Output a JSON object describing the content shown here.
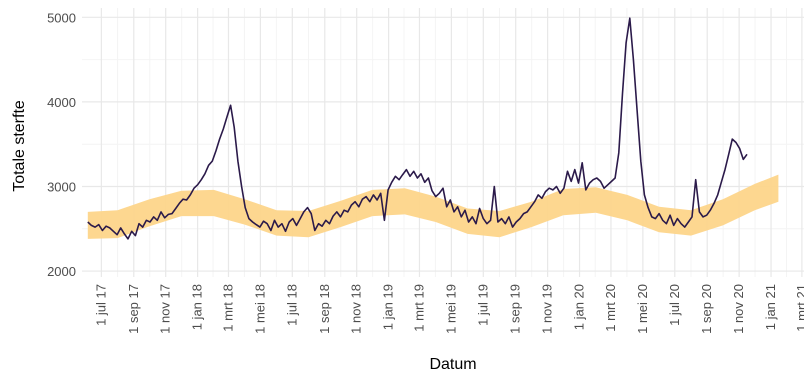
{
  "chart_data": {
    "type": "line",
    "title": "",
    "xlabel": "Datum",
    "ylabel": "Totale sterfte",
    "xlim": [
      "2017-05-25",
      "2021-03-05"
    ],
    "ylim": [
      1930,
      5110
    ],
    "grid": true,
    "legend": "none",
    "colors": {
      "line": "#2b1a4a",
      "band": "#fdd58a",
      "grid_major": "#e8e8e8",
      "grid_minor": "#f4f4f4"
    },
    "x_ticks": [
      {
        "date": "2017-07-01",
        "label": "1 jul 17"
      },
      {
        "date": "2017-09-01",
        "label": "1 sep 17"
      },
      {
        "date": "2017-11-01",
        "label": "1 nov 17"
      },
      {
        "date": "2018-01-01",
        "label": "1 jan 18"
      },
      {
        "date": "2018-03-01",
        "label": "1 mrt 18"
      },
      {
        "date": "2018-05-01",
        "label": "1 mei 18"
      },
      {
        "date": "2018-07-01",
        "label": "1 jul 18"
      },
      {
        "date": "2018-09-01",
        "label": "1 sep 18"
      },
      {
        "date": "2018-11-01",
        "label": "1 nov 18"
      },
      {
        "date": "2019-01-01",
        "label": "1 jan 19"
      },
      {
        "date": "2019-03-01",
        "label": "1 mrt 19"
      },
      {
        "date": "2019-05-01",
        "label": "1 mei 19"
      },
      {
        "date": "2019-07-01",
        "label": "1 jul 19"
      },
      {
        "date": "2019-09-01",
        "label": "1 sep 19"
      },
      {
        "date": "2019-11-01",
        "label": "1 nov 19"
      },
      {
        "date": "2020-01-01",
        "label": "1 jan 20"
      },
      {
        "date": "2020-03-01",
        "label": "1 mrt 20"
      },
      {
        "date": "2020-05-01",
        "label": "1 mei 20"
      },
      {
        "date": "2020-07-01",
        "label": "1 jul 20"
      },
      {
        "date": "2020-09-01",
        "label": "1 sep 20"
      },
      {
        "date": "2020-11-01",
        "label": "1 nov 20"
      },
      {
        "date": "2021-01-01",
        "label": "1 jan 21"
      },
      {
        "date": "2021-03-01",
        "label": "1 mrt 21"
      }
    ],
    "y_ticks": [
      {
        "value": 2000,
        "label": "2000"
      },
      {
        "value": 3000,
        "label": "3000"
      },
      {
        "value": 4000,
        "label": "4000"
      },
      {
        "value": 5000,
        "label": "5000"
      }
    ],
    "series": [
      {
        "kind": "line",
        "points": [
          [
            "2017-06-05",
            2580
          ],
          [
            "2017-06-12",
            2540
          ],
          [
            "2017-06-19",
            2520
          ],
          [
            "2017-06-26",
            2550
          ],
          [
            "2017-07-03",
            2480
          ],
          [
            "2017-07-10",
            2530
          ],
          [
            "2017-07-17",
            2510
          ],
          [
            "2017-07-24",
            2470
          ],
          [
            "2017-07-31",
            2430
          ],
          [
            "2017-08-07",
            2510
          ],
          [
            "2017-08-14",
            2440
          ],
          [
            "2017-08-21",
            2380
          ],
          [
            "2017-08-28",
            2470
          ],
          [
            "2017-09-04",
            2420
          ],
          [
            "2017-09-11",
            2560
          ],
          [
            "2017-09-18",
            2520
          ],
          [
            "2017-09-25",
            2600
          ],
          [
            "2017-10-02",
            2580
          ],
          [
            "2017-10-09",
            2640
          ],
          [
            "2017-10-16",
            2600
          ],
          [
            "2017-10-23",
            2700
          ],
          [
            "2017-10-30",
            2630
          ],
          [
            "2017-11-06",
            2670
          ],
          [
            "2017-11-13",
            2680
          ],
          [
            "2017-11-20",
            2740
          ],
          [
            "2017-11-27",
            2800
          ],
          [
            "2017-12-04",
            2850
          ],
          [
            "2017-12-11",
            2840
          ],
          [
            "2017-12-18",
            2900
          ],
          [
            "2017-12-25",
            2980
          ],
          [
            "2018-01-01",
            3020
          ],
          [
            "2018-01-08",
            3080
          ],
          [
            "2018-01-15",
            3150
          ],
          [
            "2018-01-22",
            3250
          ],
          [
            "2018-01-29",
            3300
          ],
          [
            "2018-02-05",
            3420
          ],
          [
            "2018-02-12",
            3560
          ],
          [
            "2018-02-19",
            3680
          ],
          [
            "2018-02-26",
            3820
          ],
          [
            "2018-03-05",
            3960
          ],
          [
            "2018-03-12",
            3700
          ],
          [
            "2018-03-19",
            3300
          ],
          [
            "2018-03-26",
            3000
          ],
          [
            "2018-04-02",
            2750
          ],
          [
            "2018-04-09",
            2620
          ],
          [
            "2018-04-16",
            2580
          ],
          [
            "2018-04-23",
            2550
          ],
          [
            "2018-04-30",
            2520
          ],
          [
            "2018-05-07",
            2590
          ],
          [
            "2018-05-14",
            2560
          ],
          [
            "2018-05-21",
            2480
          ],
          [
            "2018-05-28",
            2600
          ],
          [
            "2018-06-04",
            2520
          ],
          [
            "2018-06-11",
            2560
          ],
          [
            "2018-06-18",
            2470
          ],
          [
            "2018-06-25",
            2580
          ],
          [
            "2018-07-02",
            2620
          ],
          [
            "2018-07-09",
            2540
          ],
          [
            "2018-07-16",
            2620
          ],
          [
            "2018-07-23",
            2700
          ],
          [
            "2018-07-30",
            2750
          ],
          [
            "2018-08-06",
            2680
          ],
          [
            "2018-08-13",
            2480
          ],
          [
            "2018-08-20",
            2560
          ],
          [
            "2018-08-27",
            2530
          ],
          [
            "2018-09-03",
            2600
          ],
          [
            "2018-09-10",
            2560
          ],
          [
            "2018-09-17",
            2650
          ],
          [
            "2018-09-24",
            2700
          ],
          [
            "2018-10-01",
            2640
          ],
          [
            "2018-10-08",
            2720
          ],
          [
            "2018-10-15",
            2700
          ],
          [
            "2018-10-22",
            2780
          ],
          [
            "2018-10-29",
            2820
          ],
          [
            "2018-11-05",
            2760
          ],
          [
            "2018-11-12",
            2850
          ],
          [
            "2018-11-19",
            2880
          ],
          [
            "2018-11-26",
            2820
          ],
          [
            "2018-12-03",
            2900
          ],
          [
            "2018-12-10",
            2840
          ],
          [
            "2018-12-17",
            2920
          ],
          [
            "2018-12-24",
            2600
          ],
          [
            "2018-12-31",
            2960
          ],
          [
            "2019-01-07",
            3050
          ],
          [
            "2019-01-14",
            3120
          ],
          [
            "2019-01-21",
            3080
          ],
          [
            "2019-01-28",
            3140
          ],
          [
            "2019-02-04",
            3200
          ],
          [
            "2019-02-11",
            3120
          ],
          [
            "2019-02-18",
            3180
          ],
          [
            "2019-02-25",
            3100
          ],
          [
            "2019-03-04",
            3150
          ],
          [
            "2019-03-11",
            3050
          ],
          [
            "2019-03-18",
            3100
          ],
          [
            "2019-03-25",
            2950
          ],
          [
            "2019-04-01",
            2880
          ],
          [
            "2019-04-08",
            2920
          ],
          [
            "2019-04-15",
            2980
          ],
          [
            "2019-04-22",
            2760
          ],
          [
            "2019-04-29",
            2840
          ],
          [
            "2019-05-06",
            2700
          ],
          [
            "2019-05-13",
            2760
          ],
          [
            "2019-05-20",
            2640
          ],
          [
            "2019-05-27",
            2720
          ],
          [
            "2019-06-03",
            2580
          ],
          [
            "2019-06-10",
            2640
          ],
          [
            "2019-06-17",
            2560
          ],
          [
            "2019-06-24",
            2740
          ],
          [
            "2019-07-01",
            2620
          ],
          [
            "2019-07-08",
            2560
          ],
          [
            "2019-07-15",
            2600
          ],
          [
            "2019-07-22",
            3000
          ],
          [
            "2019-07-29",
            2580
          ],
          [
            "2019-08-05",
            2620
          ],
          [
            "2019-08-12",
            2560
          ],
          [
            "2019-08-19",
            2640
          ],
          [
            "2019-08-26",
            2520
          ],
          [
            "2019-09-02",
            2580
          ],
          [
            "2019-09-09",
            2620
          ],
          [
            "2019-09-16",
            2680
          ],
          [
            "2019-09-23",
            2700
          ],
          [
            "2019-09-30",
            2760
          ],
          [
            "2019-10-07",
            2820
          ],
          [
            "2019-10-14",
            2900
          ],
          [
            "2019-10-21",
            2860
          ],
          [
            "2019-10-28",
            2940
          ],
          [
            "2019-11-04",
            2980
          ],
          [
            "2019-11-11",
            2960
          ],
          [
            "2019-11-18",
            3000
          ],
          [
            "2019-11-25",
            2920
          ],
          [
            "2019-12-02",
            2980
          ],
          [
            "2019-12-09",
            3180
          ],
          [
            "2019-12-16",
            3060
          ],
          [
            "2019-12-23",
            3200
          ],
          [
            "2019-12-30",
            3040
          ],
          [
            "2020-01-06",
            3280
          ],
          [
            "2020-01-13",
            2960
          ],
          [
            "2020-01-20",
            3040
          ],
          [
            "2020-01-27",
            3080
          ],
          [
            "2020-02-03",
            3100
          ],
          [
            "2020-02-10",
            3060
          ],
          [
            "2020-02-17",
            2980
          ],
          [
            "2020-02-24",
            3020
          ],
          [
            "2020-03-02",
            3060
          ],
          [
            "2020-03-09",
            3100
          ],
          [
            "2020-03-16",
            3400
          ],
          [
            "2020-03-23",
            4100
          ],
          [
            "2020-03-30",
            4700
          ],
          [
            "2020-04-06",
            4990
          ],
          [
            "2020-04-13",
            4500
          ],
          [
            "2020-04-20",
            3900
          ],
          [
            "2020-04-27",
            3300
          ],
          [
            "2020-05-04",
            2900
          ],
          [
            "2020-05-11",
            2750
          ],
          [
            "2020-05-18",
            2640
          ],
          [
            "2020-05-25",
            2620
          ],
          [
            "2020-06-01",
            2680
          ],
          [
            "2020-06-08",
            2600
          ],
          [
            "2020-06-15",
            2560
          ],
          [
            "2020-06-22",
            2660
          ],
          [
            "2020-06-29",
            2540
          ],
          [
            "2020-07-06",
            2620
          ],
          [
            "2020-07-13",
            2560
          ],
          [
            "2020-07-20",
            2520
          ],
          [
            "2020-07-27",
            2580
          ],
          [
            "2020-08-03",
            2640
          ],
          [
            "2020-08-10",
            3080
          ],
          [
            "2020-08-17",
            2700
          ],
          [
            "2020-08-24",
            2640
          ],
          [
            "2020-08-31",
            2660
          ],
          [
            "2020-09-07",
            2720
          ],
          [
            "2020-09-14",
            2800
          ],
          [
            "2020-09-21",
            2900
          ],
          [
            "2020-09-28",
            3050
          ],
          [
            "2020-10-05",
            3200
          ],
          [
            "2020-10-12",
            3380
          ],
          [
            "2020-10-19",
            3560
          ],
          [
            "2020-10-26",
            3520
          ],
          [
            "2020-11-02",
            3450
          ],
          [
            "2020-11-09",
            3320
          ],
          [
            "2020-11-16",
            3380
          ]
        ]
      },
      {
        "kind": "band",
        "points": [
          [
            "2017-06-05",
            2380,
            2700
          ],
          [
            "2017-08-01",
            2390,
            2720
          ],
          [
            "2017-10-01",
            2530,
            2850
          ],
          [
            "2017-12-01",
            2650,
            2950
          ],
          [
            "2018-02-01",
            2650,
            2960
          ],
          [
            "2018-04-01",
            2550,
            2850
          ],
          [
            "2018-06-01",
            2420,
            2720
          ],
          [
            "2018-08-01",
            2400,
            2710
          ],
          [
            "2018-10-01",
            2520,
            2830
          ],
          [
            "2018-12-01",
            2650,
            2960
          ],
          [
            "2019-02-01",
            2670,
            2980
          ],
          [
            "2019-04-01",
            2580,
            2880
          ],
          [
            "2019-06-01",
            2440,
            2740
          ],
          [
            "2019-08-01",
            2400,
            2710
          ],
          [
            "2019-10-01",
            2520,
            2820
          ],
          [
            "2019-12-01",
            2660,
            2970
          ],
          [
            "2020-02-01",
            2690,
            2990
          ],
          [
            "2020-04-01",
            2600,
            2900
          ],
          [
            "2020-06-01",
            2460,
            2760
          ],
          [
            "2020-08-01",
            2420,
            2720
          ],
          [
            "2020-10-01",
            2540,
            2850
          ],
          [
            "2020-12-01",
            2720,
            3030
          ],
          [
            "2021-01-15",
            2820,
            3140
          ]
        ]
      }
    ]
  }
}
